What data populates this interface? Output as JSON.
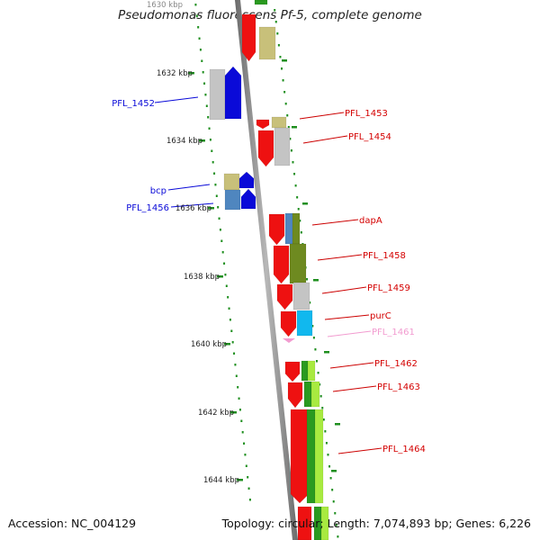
{
  "title": "Pseudomonas fluorescens Pf-5, complete genome",
  "accession": "Accession: NC_004129",
  "summary": "Topology: circular; Length: 7,074,893 bp; Genes: 6,226",
  "scale_labels": [
    "1630 kbp",
    "1632 kbp",
    "1634 kbp",
    "1636 kbp",
    "1638 kbp",
    "1640 kbp",
    "1642 kbp",
    "1644 kbp"
  ],
  "colors": {
    "red": "#ee1111",
    "blue": "#0a0ad8",
    "pink": "#f29bd0",
    "olive_tan": "#c8c07a",
    "grey": "#c4c4c4",
    "steel_blue": "#4f86bf",
    "olive_green": "#6e8a20",
    "cyan": "#11b8ee",
    "green": "#2a9a20",
    "light_green": "#a8ea40",
    "scale_dot": "#1f8f1f"
  },
  "gene_labels": [
    {
      "text": "PFL_1452",
      "color": "blue"
    },
    {
      "text": "PFL_1453",
      "color": "red"
    },
    {
      "text": "PFL_1454",
      "color": "red"
    },
    {
      "text": "bcp",
      "color": "blue"
    },
    {
      "text": "PFL_1456",
      "color": "blue"
    },
    {
      "text": "dapA",
      "color": "red"
    },
    {
      "text": "PFL_1458",
      "color": "red"
    },
    {
      "text": "PFL_1459",
      "color": "red"
    },
    {
      "text": "purC",
      "color": "red"
    },
    {
      "text": "PFL_1461",
      "color": "pink"
    },
    {
      "text": "PFL_1462",
      "color": "red"
    },
    {
      "text": "PFL_1463",
      "color": "red"
    },
    {
      "text": "PFL_1464",
      "color": "red"
    }
  ]
}
